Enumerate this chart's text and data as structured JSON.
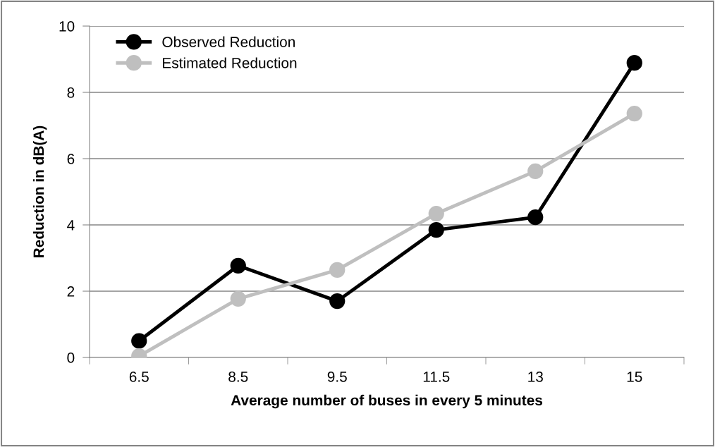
{
  "chart_data": {
    "type": "line",
    "xlabel": "Average number of buses in every 5 minutes",
    "ylabel": "Reduction in dB(A)",
    "categories": [
      "6.5",
      "8.5",
      "9.5",
      "11.5",
      "13",
      "15"
    ],
    "series": [
      {
        "name": "Observed Reduction",
        "color": "#000000",
        "values": [
          0.5,
          2.77,
          1.7,
          3.85,
          4.23,
          8.89
        ]
      },
      {
        "name": "Estimated Reduction",
        "color": "#bfbfbf",
        "values": [
          0.04,
          1.77,
          2.64,
          4.34,
          5.62,
          7.36
        ]
      }
    ],
    "ylim": [
      0,
      10
    ],
    "yticks": [
      0,
      2,
      4,
      6,
      8,
      10
    ],
    "grid": "y",
    "legend": "top left",
    "marker": "circle",
    "line_style": "solid"
  }
}
